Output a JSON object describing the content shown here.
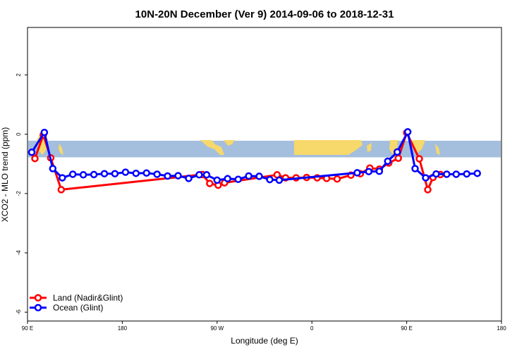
{
  "chart_data": {
    "type": "line",
    "title": "10N-20N December (Ver 9)   2014-09-06 to 2018-12-31",
    "xlabel": "Longitude (deg E)",
    "ylabel": "XCO2 - MLO trend (ppm)",
    "x_ticks": [
      {
        "value": 90,
        "label": "90 E"
      },
      {
        "value": 180,
        "label": "180"
      },
      {
        "value": 270,
        "label": "90 W"
      },
      {
        "value": 360,
        "label": "0"
      },
      {
        "value": 450,
        "label": "90 E"
      },
      {
        "value": 540,
        "label": "180"
      }
    ],
    "y_ticks": [
      {
        "value": -6,
        "label": "-6"
      },
      {
        "value": -4,
        "label": "-4"
      },
      {
        "value": -2,
        "label": "-2"
      },
      {
        "value": 0,
        "label": "0"
      },
      {
        "value": 2,
        "label": "2"
      }
    ],
    "xlim": [
      90,
      540
    ],
    "ylim": [
      -6.3,
      3.6
    ],
    "grid": false,
    "legend_position": "bottom-left",
    "map_strip": {
      "y_range": [
        -0.78,
        -0.22
      ],
      "ocean_color": "#a4bedd",
      "land_color": "#f7d86a"
    },
    "series": [
      {
        "name": "Land (Nadir&Glint)",
        "color": "#ff0000",
        "x": [
          97,
          105,
          112,
          122,
          256,
          263,
          271,
          277,
          327,
          335,
          345,
          355,
          365,
          374,
          384,
          397,
          406,
          415,
          424,
          433,
          442,
          450,
          462,
          470,
          475,
          482
        ],
        "y": [
          -0.82,
          -0.02,
          -0.8,
          -1.87,
          -1.36,
          -1.66,
          -1.72,
          -1.64,
          -1.37,
          -1.47,
          -1.47,
          -1.46,
          -1.47,
          -1.49,
          -1.51,
          -1.38,
          -1.33,
          -1.14,
          -1.18,
          -0.97,
          -0.81,
          0.05,
          -0.83,
          -1.87,
          -1.46,
          -1.36
        ]
      },
      {
        "name": "Ocean (Glint)",
        "color": "#0000ff",
        "x": [
          94,
          106,
          114,
          123,
          133,
          143,
          153,
          163,
          173,
          183,
          193,
          203,
          213,
          223,
          233,
          243,
          253,
          260,
          270,
          280,
          290,
          300,
          310,
          320,
          329,
          403,
          414,
          424,
          432,
          441,
          451,
          458,
          468,
          478,
          488,
          497,
          507,
          517
        ],
        "y": [
          -0.61,
          0.06,
          -1.16,
          -1.47,
          -1.35,
          -1.37,
          -1.36,
          -1.33,
          -1.33,
          -1.28,
          -1.32,
          -1.31,
          -1.35,
          -1.41,
          -1.4,
          -1.49,
          -1.37,
          -1.37,
          -1.55,
          -1.5,
          -1.52,
          -1.41,
          -1.42,
          -1.53,
          -1.55,
          -1.3,
          -1.26,
          -1.25,
          -0.91,
          -0.6,
          0.08,
          -1.16,
          -1.47,
          -1.34,
          -1.35,
          -1.35,
          -1.34,
          -1.32
        ]
      }
    ]
  }
}
